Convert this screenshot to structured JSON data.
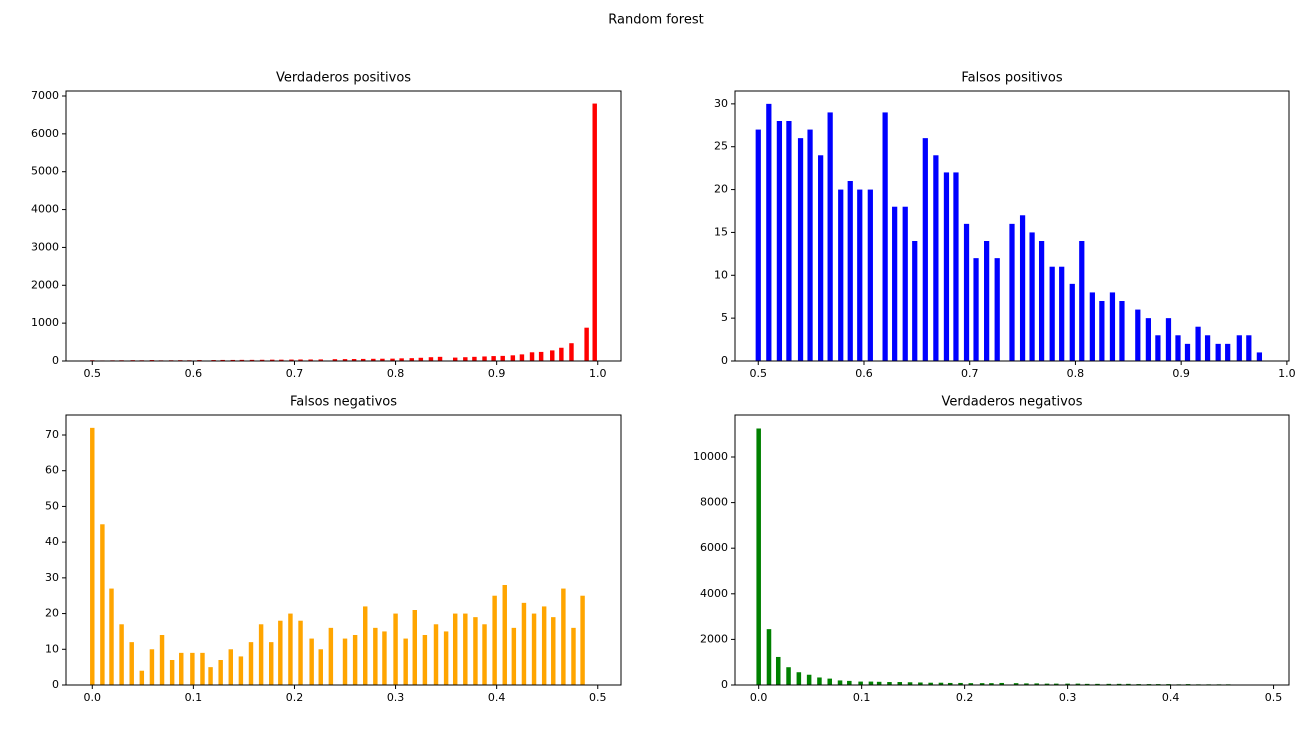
{
  "title": "Random forest",
  "chart_data": [
    {
      "type": "bar",
      "title": "Verdaderos positivos",
      "color": "red",
      "x": [
        0.5,
        0.51,
        0.52,
        0.529,
        0.54,
        0.549,
        0.559,
        0.568,
        0.578,
        0.587,
        0.596,
        0.606,
        0.62,
        0.629,
        0.639,
        0.648,
        0.658,
        0.668,
        0.678,
        0.687,
        0.697,
        0.706,
        0.716,
        0.726,
        0.74,
        0.75,
        0.759,
        0.768,
        0.778,
        0.787,
        0.797,
        0.806,
        0.816,
        0.825,
        0.835,
        0.844,
        0.859,
        0.869,
        0.878,
        0.888,
        0.897,
        0.906,
        0.916,
        0.925,
        0.935,
        0.944,
        0.955,
        0.964,
        0.974,
        0.989,
        0.997
      ],
      "values": [
        20,
        15,
        18,
        20,
        22,
        20,
        25,
        18,
        20,
        22,
        20,
        25,
        25,
        28,
        28,
        30,
        30,
        32,
        35,
        35,
        38,
        40,
        40,
        42,
        48,
        50,
        52,
        55,
        58,
        60,
        62,
        70,
        75,
        85,
        100,
        110,
        90,
        100,
        110,
        120,
        130,
        135,
        150,
        175,
        230,
        240,
        280,
        350,
        470,
        880,
        6800
      ],
      "xlim": [
        0.474,
        1.023
      ],
      "ylim": [
        0,
        7132
      ],
      "xticks": [
        0.5,
        0.6,
        0.7,
        0.8,
        0.9,
        {
          "value": 1,
          "label": "1.0"
        }
      ],
      "yticks": [
        0,
        1000,
        2000,
        3000,
        4000,
        5000,
        6000,
        7000
      ]
    },
    {
      "type": "bar",
      "title": "Falsos positivos",
      "color": "blue",
      "x": [
        0.5,
        0.51,
        0.52,
        0.529,
        0.54,
        0.549,
        0.559,
        0.568,
        0.578,
        0.587,
        0.596,
        0.606,
        0.62,
        0.629,
        0.639,
        0.648,
        0.658,
        0.668,
        0.678,
        0.687,
        0.697,
        0.706,
        0.716,
        0.726,
        0.74,
        0.75,
        0.759,
        0.768,
        0.778,
        0.787,
        0.797,
        0.806,
        0.816,
        0.825,
        0.835,
        0.844,
        0.859,
        0.869,
        0.878,
        0.888,
        0.897,
        0.906,
        0.916,
        0.925,
        0.935,
        0.944,
        0.955,
        0.964,
        0.974
      ],
      "values": [
        27,
        30,
        28,
        28,
        26,
        27,
        24,
        29,
        20,
        21,
        20,
        20,
        29,
        18,
        18,
        14,
        26,
        24,
        22,
        22,
        16,
        12,
        14,
        12,
        16,
        17,
        15,
        14,
        11,
        11,
        9,
        14,
        8,
        7,
        8,
        7,
        6,
        5,
        3,
        5,
        3,
        2,
        4,
        3,
        2,
        2,
        3,
        3,
        1
      ],
      "xlim": [
        0.478,
        1.002
      ],
      "ylim": [
        0,
        31.5
      ],
      "xticks": [
        0.5,
        0.6,
        0.7,
        0.8,
        0.9,
        {
          "value": 1,
          "label": "1.0"
        }
      ],
      "yticks": [
        0,
        5,
        10,
        15,
        20,
        25,
        30
      ]
    },
    {
      "type": "bar",
      "title": "Falsos negativos",
      "color": "orange",
      "x": [
        0,
        0.01,
        0.019,
        0.029,
        0.039,
        0.049,
        0.059,
        0.069,
        0.079,
        0.088,
        0.099,
        0.109,
        0.117,
        0.127,
        0.137,
        0.147,
        0.157,
        0.167,
        0.177,
        0.186,
        0.196,
        0.206,
        0.217,
        0.226,
        0.236,
        0.25,
        0.26,
        0.27,
        0.28,
        0.289,
        0.3,
        0.31,
        0.319,
        0.329,
        0.34,
        0.35,
        0.359,
        0.369,
        0.379,
        0.388,
        0.398,
        0.408,
        0.417,
        0.427,
        0.437,
        0.447,
        0.456,
        0.466,
        0.476,
        0.485
      ],
      "values": [
        72,
        45,
        27,
        17,
        12,
        4,
        10,
        14,
        7,
        9,
        9,
        9,
        5,
        7,
        10,
        8,
        12,
        17,
        12,
        18,
        20,
        18,
        13,
        10,
        16,
        13,
        14,
        22,
        16,
        15,
        20,
        13,
        21,
        14,
        17,
        15,
        20,
        20,
        19,
        17,
        25,
        28,
        16,
        23,
        20,
        22,
        19,
        27,
        16,
        25
      ],
      "xlim": [
        -0.026,
        0.523
      ],
      "ylim": [
        0,
        75.6
      ],
      "xticks": [
        {
          "value": 0,
          "label": "0.0"
        },
        0.1,
        0.2,
        0.3,
        0.4,
        0.5
      ],
      "yticks": [
        0,
        10,
        20,
        30,
        40,
        50,
        60,
        70
      ]
    },
    {
      "type": "bar",
      "title": "Verdaderos negativos",
      "color": "green",
      "x": [
        0,
        0.01,
        0.019,
        0.029,
        0.039,
        0.049,
        0.059,
        0.069,
        0.079,
        0.088,
        0.099,
        0.109,
        0.117,
        0.127,
        0.137,
        0.147,
        0.157,
        0.167,
        0.177,
        0.186,
        0.196,
        0.206,
        0.217,
        0.226,
        0.236,
        0.25,
        0.26,
        0.27,
        0.28,
        0.289,
        0.3,
        0.31,
        0.319,
        0.329,
        0.34,
        0.35,
        0.359,
        0.369,
        0.379,
        0.388,
        0.398,
        0.408,
        0.417,
        0.427,
        0.437,
        0.447,
        0.456,
        0.466,
        0.476,
        0.485
      ],
      "values": [
        11250,
        2450,
        1230,
        780,
        560,
        450,
        330,
        280,
        200,
        180,
        150,
        150,
        140,
        130,
        130,
        120,
        110,
        100,
        100,
        90,
        90,
        80,
        80,
        80,
        90,
        80,
        70,
        70,
        60,
        60,
        60,
        60,
        50,
        50,
        50,
        50,
        50,
        40,
        40,
        40,
        40,
        30,
        40,
        30,
        30,
        30,
        30,
        20,
        20,
        20
      ],
      "xlim": [
        -0.023,
        0.515
      ],
      "ylim": [
        0,
        11842
      ],
      "xticks": [
        {
          "value": 0,
          "label": "0.0"
        },
        0.1,
        0.2,
        0.3,
        0.4,
        0.5
      ],
      "yticks": [
        0,
        2000,
        4000,
        6000,
        8000,
        10000
      ]
    }
  ]
}
